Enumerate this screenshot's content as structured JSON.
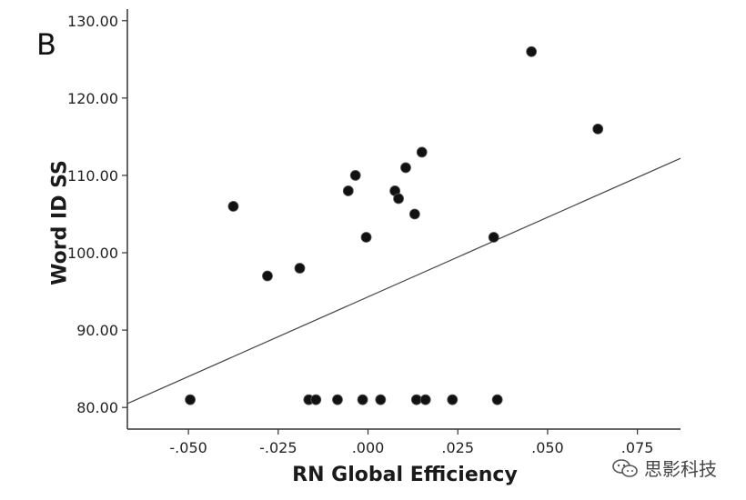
{
  "panel_label": "B",
  "watermark": {
    "text": "思影科技",
    "icon": "wechat-icon"
  },
  "chart_data": {
    "type": "scatter",
    "title": "",
    "xlabel": "RN Global Efficiency",
    "ylabel": "Word ID SS",
    "xlim": [
      -0.067,
      0.087
    ],
    "ylim": [
      77.2,
      131.5
    ],
    "x_ticks": [
      -0.05,
      -0.025,
      0.0,
      0.025,
      0.05,
      0.075
    ],
    "x_tick_labels": [
      "-.050",
      "-.025",
      ".000",
      ".025",
      ".050",
      ".075"
    ],
    "y_ticks": [
      80,
      90,
      100,
      110,
      120,
      130
    ],
    "y_tick_labels": [
      "80.00",
      "90.00",
      "100.00",
      "110.00",
      "120.00",
      "130.00"
    ],
    "grid": false,
    "points": [
      {
        "x": -0.0495,
        "y": 81
      },
      {
        "x": -0.0375,
        "y": 106
      },
      {
        "x": -0.028,
        "y": 97
      },
      {
        "x": -0.019,
        "y": 98
      },
      {
        "x": -0.0165,
        "y": 81
      },
      {
        "x": -0.0145,
        "y": 81
      },
      {
        "x": -0.0085,
        "y": 81
      },
      {
        "x": -0.0055,
        "y": 108
      },
      {
        "x": -0.0035,
        "y": 110
      },
      {
        "x": -0.0015,
        "y": 81
      },
      {
        "x": -0.0005,
        "y": 102
      },
      {
        "x": 0.0035,
        "y": 81
      },
      {
        "x": 0.0075,
        "y": 108
      },
      {
        "x": 0.0085,
        "y": 107
      },
      {
        "x": 0.0105,
        "y": 111
      },
      {
        "x": 0.013,
        "y": 105
      },
      {
        "x": 0.0135,
        "y": 81
      },
      {
        "x": 0.015,
        "y": 113
      },
      {
        "x": 0.016,
        "y": 81
      },
      {
        "x": 0.0235,
        "y": 81
      },
      {
        "x": 0.035,
        "y": 102
      },
      {
        "x": 0.036,
        "y": 81
      },
      {
        "x": 0.0455,
        "y": 126
      },
      {
        "x": 0.064,
        "y": 116
      }
    ],
    "fit_line": {
      "x": [
        -0.067,
        0.087
      ],
      "y": [
        80.5,
        112.2
      ]
    }
  }
}
